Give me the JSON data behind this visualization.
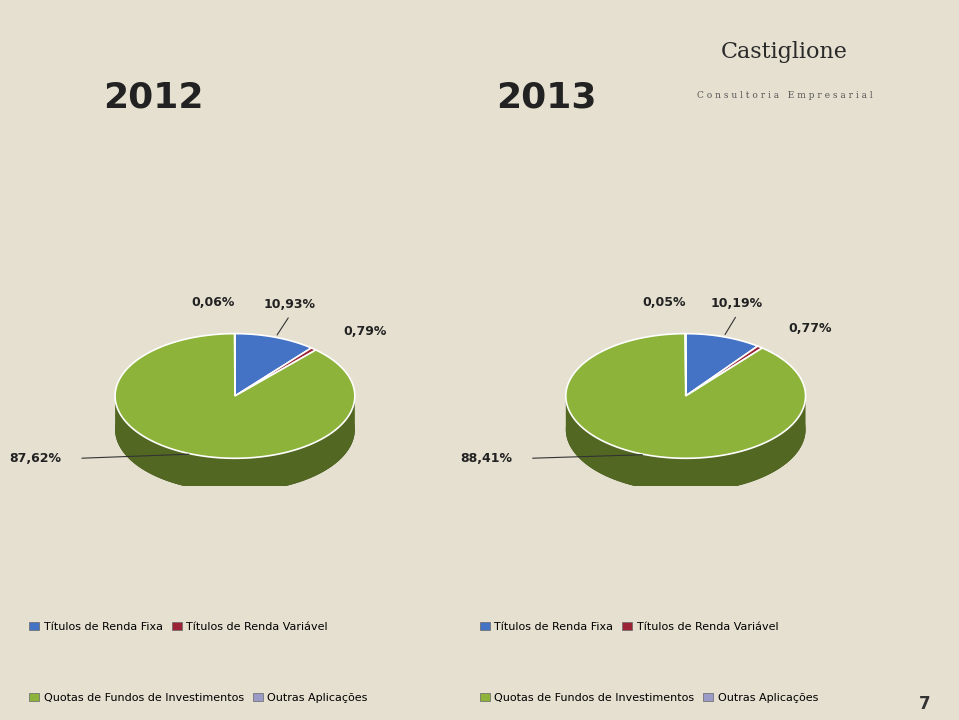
{
  "background_color": "#e5e0d0",
  "title_2012": "2012",
  "title_2013": "2013",
  "title_fontsize": 26,
  "title_color": "#222222",
  "pie_2012": {
    "values": [
      10.93,
      0.79,
      87.62,
      0.06
    ],
    "labels": [
      "10,93%",
      "0,79%",
      "87,62%",
      "0,06%"
    ],
    "colors": [
      "#4472c4",
      "#9b2335",
      "#8db33a",
      "#e0e0e0"
    ],
    "startangle": 90
  },
  "pie_2013": {
    "values": [
      10.19,
      0.77,
      88.41,
      0.05
    ],
    "labels": [
      "10,19%",
      "0,77%",
      "88,41%",
      "0,05%"
    ],
    "colors": [
      "#4472c4",
      "#9b2335",
      "#8db33a",
      "#e0e0e0"
    ],
    "startangle": 90
  },
  "legend_items": [
    {
      "label": "Títulos de Renda Fixa",
      "color": "#4472c4"
    },
    {
      "label": "Títulos de Renda Variável",
      "color": "#9b2335"
    },
    {
      "label": "Quotas de Fundos de Investimentos",
      "color": "#8db33a"
    },
    {
      "label": "Outras Aplicações",
      "color": "#9b9bc8"
    }
  ],
  "page_number": "7"
}
